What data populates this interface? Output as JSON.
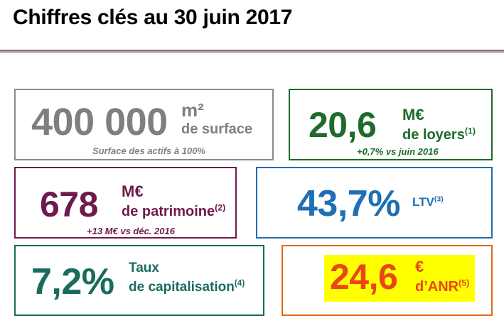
{
  "title": "Chiffres clés au 30 juin 2017",
  "cards": {
    "surface": {
      "value": "400 000",
      "unit": "m²",
      "label": "de surface",
      "note": "Surface des actifs à 100%"
    },
    "loyers": {
      "value": "20,6",
      "unit": "M€",
      "label": "de loyers",
      "footnote": "(1)",
      "note": "+0,7% vs juin 2016"
    },
    "patrimoine": {
      "value": "678",
      "unit": "M€",
      "label": "de patrimoine",
      "footnote": "(2)",
      "note": "+13 M€ vs déc. 2016"
    },
    "ltv": {
      "value": "43,7%",
      "label": "LTV",
      "footnote": "(3)"
    },
    "capitalisation": {
      "value": "7,2%",
      "label_line1": "Taux",
      "label_line2": "de capitalisation",
      "footnote": "(4)"
    },
    "anr": {
      "value": "24,6",
      "unit": "€",
      "label": "d’ANR",
      "footnote": "(5)"
    }
  },
  "colors": {
    "surface": "#7f7f7f",
    "loyers": "#1e6b2a",
    "patrimoine": "#6e1a4d",
    "ltv": "#1f6fb4",
    "capitalisation": "#1a6b5e",
    "anr": "#e8461c",
    "anr_highlight": "#ffff00",
    "anr_border": "#e06a1a"
  }
}
